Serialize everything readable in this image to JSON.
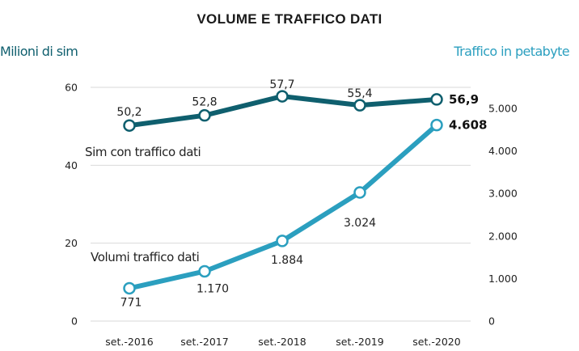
{
  "chart_data": {
    "type": "line",
    "title": "VOLUME E TRAFFICO DATI",
    "categories": [
      "set.-2016",
      "set.-2017",
      "set.-2018",
      "set.-2019",
      "set.-2020"
    ],
    "left_axis": {
      "label": "Milioni di sim",
      "range": [
        0,
        60
      ],
      "ticks": [
        0,
        20,
        40,
        60
      ],
      "tick_labels": [
        "0",
        "20",
        "40",
        "60"
      ]
    },
    "right_axis": {
      "label": "Traffico in petabyte",
      "range": [
        0,
        5000
      ],
      "ticks": [
        0,
        1000,
        2000,
        3000,
        4000,
        5000
      ],
      "tick_labels": [
        "0",
        "1.000",
        "2.000",
        "3.000",
        "4.000",
        "5.000"
      ]
    },
    "grid": true,
    "series": [
      {
        "name": "Sim con traffico dati",
        "axis": "left",
        "color": "#0f5f6e",
        "values": [
          50.2,
          52.8,
          57.7,
          55.4,
          56.9
        ],
        "labels": [
          "50,2",
          "52,8",
          "57,7",
          "55,4",
          "56,9"
        ]
      },
      {
        "name": "Volumi traffico dati",
        "axis": "right",
        "color": "#2b9fbf",
        "values": [
          771,
          1170,
          1884,
          3024,
          4608
        ],
        "labels": [
          "771",
          "1.170",
          "1.884",
          "3.024",
          "4.608"
        ]
      }
    ]
  }
}
